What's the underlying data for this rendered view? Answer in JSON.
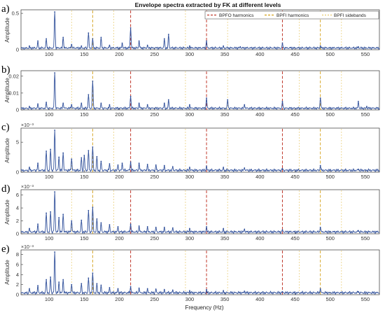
{
  "colors": {
    "spectrum": "#2f4f9a",
    "bpfo": "#c0392b",
    "bpfi": "#d4a017",
    "sideband": "#e8c96a"
  },
  "chart_data": {
    "type": "line",
    "title": "Envelope spectra extracted by FK at different levels",
    "xlabel": "Frequency (Hz)",
    "xlim": [
      60,
      570
    ],
    "xticks": [
      "100",
      "150",
      "200",
      "250",
      "300",
      "350",
      "400",
      "450",
      "500",
      "550"
    ],
    "legend": {
      "placement": "top-right",
      "entries": [
        "BPFO harmonics",
        "BPFI harmonics",
        "BPFI sidebands"
      ]
    },
    "markers": {
      "bpfo": [
        216,
        324,
        432
      ],
      "bpfi": [
        162,
        486
      ],
      "sidebands": [
        132,
        192,
        294,
        354,
        456,
        516
      ]
    },
    "panels": [
      {
        "letter": "a)",
        "ylabel": "Amplitude",
        "multiplier": "",
        "ylim": [
          0,
          0.52
        ],
        "yticks": [
          "0",
          "0.5"
        ],
        "peaks": [
          [
            72,
            0.05
          ],
          [
            84,
            0.12
          ],
          [
            96,
            0.15
          ],
          [
            108,
            0.52
          ],
          [
            120,
            0.17
          ],
          [
            132,
            0.07
          ],
          [
            146,
            0.05
          ],
          [
            156,
            0.23
          ],
          [
            162,
            0.15
          ],
          [
            174,
            0.17
          ],
          [
            186,
            0.06
          ],
          [
            204,
            0.09
          ],
          [
            216,
            0.3
          ],
          [
            228,
            0.12
          ],
          [
            240,
            0.06
          ],
          [
            264,
            0.15
          ],
          [
            270,
            0.21
          ],
          [
            300,
            0.05
          ],
          [
            324,
            0.12
          ],
          [
            348,
            0.05
          ],
          [
            372,
            0.04
          ],
          [
            432,
            0.09
          ],
          [
            444,
            0.03
          ],
          [
            486,
            0.05
          ],
          [
            540,
            0.04
          ]
        ]
      },
      {
        "letter": "b)",
        "ylabel": "Amplitude",
        "multiplier": "",
        "ylim": [
          0,
          0.022
        ],
        "yticks": [
          "0",
          "0.01",
          "0.02"
        ],
        "peaks": [
          [
            72,
            0.002
          ],
          [
            84,
            0.0035
          ],
          [
            96,
            0.0045
          ],
          [
            108,
            0.022
          ],
          [
            120,
            0.004
          ],
          [
            132,
            0.003
          ],
          [
            146,
            0.004
          ],
          [
            156,
            0.009
          ],
          [
            162,
            0.017
          ],
          [
            174,
            0.004
          ],
          [
            186,
            0.003
          ],
          [
            216,
            0.008
          ],
          [
            228,
            0.004
          ],
          [
            240,
            0.003
          ],
          [
            264,
            0.004
          ],
          [
            270,
            0.006
          ],
          [
            300,
            0.003
          ],
          [
            324,
            0.007
          ],
          [
            354,
            0.006
          ],
          [
            378,
            0.003
          ],
          [
            432,
            0.005
          ],
          [
            486,
            0.007
          ],
          [
            540,
            0.005
          ],
          [
            552,
            0.002
          ]
        ]
      },
      {
        "letter": "c)",
        "ylabel": "Amplitude",
        "multiplier": "×10⁻³",
        "ylim": [
          0,
          7
        ],
        "yticks": [
          "0",
          "5"
        ],
        "peaks": [
          [
            72,
            0.8
          ],
          [
            84,
            1.5
          ],
          [
            96,
            3.5
          ],
          [
            102,
            3.8
          ],
          [
            108,
            7
          ],
          [
            114,
            2.5
          ],
          [
            120,
            3.2
          ],
          [
            132,
            2.2
          ],
          [
            146,
            2.4
          ],
          [
            150,
            2.8
          ],
          [
            156,
            3.6
          ],
          [
            162,
            4.2
          ],
          [
            168,
            2.6
          ],
          [
            174,
            1.8
          ],
          [
            186,
            1.4
          ],
          [
            198,
            1.2
          ],
          [
            204,
            1.5
          ],
          [
            216,
            1.7
          ],
          [
            228,
            1.5
          ],
          [
            240,
            1.3
          ],
          [
            252,
            1.2
          ],
          [
            264,
            1.1
          ],
          [
            276,
            0.9
          ],
          [
            300,
            0.8
          ],
          [
            324,
            1
          ],
          [
            348,
            0.8
          ],
          [
            378,
            0.7
          ],
          [
            432,
            0.6
          ],
          [
            486,
            1.1
          ],
          [
            540,
            0.5
          ]
        ]
      },
      {
        "letter": "d)",
        "ylabel": "Amplitude",
        "multiplier": "×10⁻³",
        "ylim": [
          0,
          6.5
        ],
        "yticks": [
          "0",
          "2",
          "4",
          "6"
        ],
        "peaks": [
          [
            72,
            0.8
          ],
          [
            84,
            1.5
          ],
          [
            96,
            3.2
          ],
          [
            102,
            3.4
          ],
          [
            108,
            6.5
          ],
          [
            114,
            2.5
          ],
          [
            120,
            3
          ],
          [
            132,
            2
          ],
          [
            146,
            2.1
          ],
          [
            156,
            3.6
          ],
          [
            162,
            4.1
          ],
          [
            168,
            2.3
          ],
          [
            174,
            1.7
          ],
          [
            186,
            1.4
          ],
          [
            198,
            1.1
          ],
          [
            216,
            1.5
          ],
          [
            228,
            1.2
          ],
          [
            240,
            1.1
          ],
          [
            252,
            1
          ],
          [
            264,
            1
          ],
          [
            276,
            0.9
          ],
          [
            300,
            0.8
          ],
          [
            324,
            1.1
          ],
          [
            348,
            0.8
          ],
          [
            378,
            0.7
          ],
          [
            432,
            0.6
          ],
          [
            486,
            1
          ],
          [
            540,
            0.5
          ]
        ]
      },
      {
        "letter": "e)",
        "ylabel": "Amplitude",
        "multiplier": "×10⁻³",
        "ylim": [
          0,
          8.5
        ],
        "yticks": [
          "0",
          "2",
          "4",
          "6",
          "8"
        ],
        "peaks": [
          [
            72,
            1.2
          ],
          [
            84,
            1.8
          ],
          [
            96,
            3
          ],
          [
            102,
            3.5
          ],
          [
            108,
            8.5
          ],
          [
            114,
            2.5
          ],
          [
            120,
            3
          ],
          [
            132,
            2
          ],
          [
            146,
            2.2
          ],
          [
            156,
            3.3
          ],
          [
            162,
            4.3
          ],
          [
            168,
            2.2
          ],
          [
            174,
            1.9
          ],
          [
            186,
            1.4
          ],
          [
            198,
            1.2
          ],
          [
            216,
            1.6
          ],
          [
            228,
            1.3
          ],
          [
            240,
            1.2
          ],
          [
            252,
            1.1
          ],
          [
            264,
            1
          ],
          [
            276,
            0.9
          ],
          [
            300,
            0.8
          ],
          [
            324,
            1
          ],
          [
            348,
            0.8
          ],
          [
            378,
            0.7
          ],
          [
            432,
            0.6
          ],
          [
            486,
            1.2
          ],
          [
            540,
            0.6
          ]
        ]
      }
    ]
  }
}
